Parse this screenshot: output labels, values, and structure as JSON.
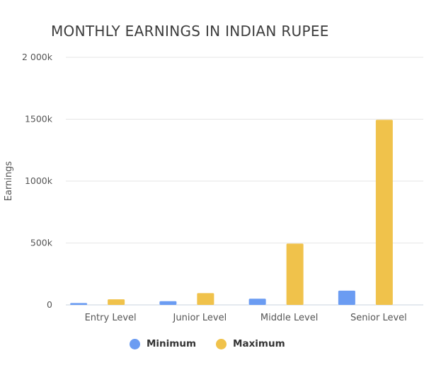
{
  "chart_data": {
    "type": "bar",
    "title": "MONTHLY EARNINGS IN INDIAN RUPEE",
    "xlabel": "",
    "ylabel": "Earnings",
    "categories": [
      "Entry Level",
      "Junior Level",
      "Middle Level",
      "Senior Level"
    ],
    "series": [
      {
        "name": "Minimum",
        "color": "#6b9cf2",
        "values": [
          15000,
          30000,
          50000,
          115000
        ]
      },
      {
        "name": "Maximum",
        "color": "#f0c24b",
        "values": [
          45000,
          95000,
          495000,
          1495000
        ]
      }
    ],
    "ylim": [
      0,
      2000000
    ],
    "yticks": [
      {
        "value": 0,
        "label": "0"
      },
      {
        "value": 500000,
        "label": "500k"
      },
      {
        "value": 1000000,
        "label": "1000k"
      },
      {
        "value": 1500000,
        "label": "1500k"
      },
      {
        "value": 2000000,
        "label": "2 000k"
      }
    ],
    "grid": true,
    "legend_position": "bottom"
  }
}
